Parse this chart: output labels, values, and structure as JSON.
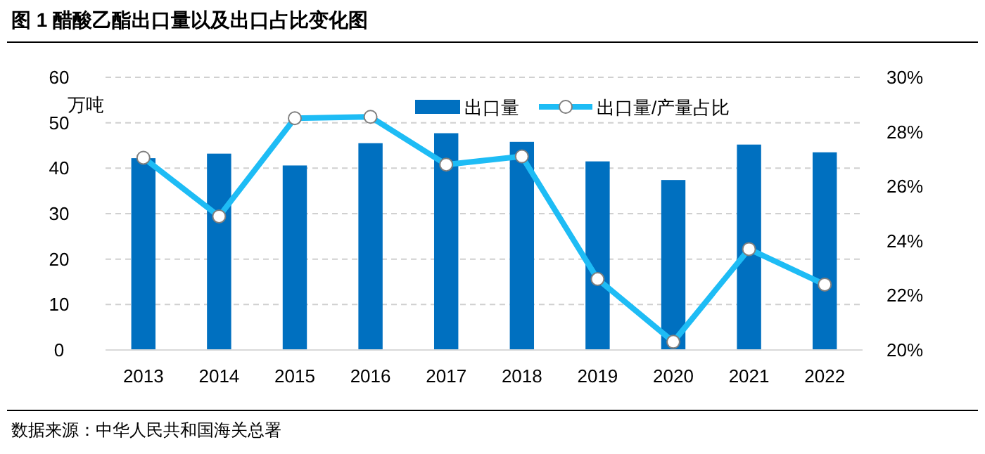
{
  "chart_data": {
    "type": "bar",
    "title": "图 1  醋酸乙酯出口量以及出口占比变化图",
    "ylabel": "万吨",
    "annotations": [
      "数据来源：中华人民共和国海关总署"
    ],
    "categories": [
      "2013",
      "2014",
      "2015",
      "2016",
      "2017",
      "2018",
      "2019",
      "2020",
      "2021",
      "2022"
    ],
    "series": [
      {
        "name": "出口量",
        "color": "#0070c0",
        "values": [
          42.2,
          43.2,
          40.6,
          45.5,
          47.7,
          45.8,
          41.5,
          37.4,
          45.2,
          43.5
        ]
      },
      {
        "name": "出口量/产量占比",
        "type": "line",
        "axis": "y2",
        "color": "#1ebcf5",
        "marker": "circle",
        "values": [
          27.05,
          24.9,
          28.5,
          28.55,
          26.8,
          27.1,
          22.6,
          20.3,
          23.7,
          22.4
        ]
      }
    ],
    "ylim": [
      0,
      60
    ],
    "yticks": [
      0,
      10,
      20,
      30,
      40,
      50,
      60
    ],
    "y2lim": [
      20,
      30
    ],
    "y2ticks": [
      {
        "value": 20,
        "label": "20%"
      },
      {
        "value": 22,
        "label": "22%"
      },
      {
        "value": 24,
        "label": "24%"
      },
      {
        "value": 26,
        "label": "26%"
      },
      {
        "value": 28,
        "label": "28%"
      },
      {
        "value": 30,
        "label": "30%"
      }
    ],
    "grid": "y",
    "legend": "top"
  }
}
